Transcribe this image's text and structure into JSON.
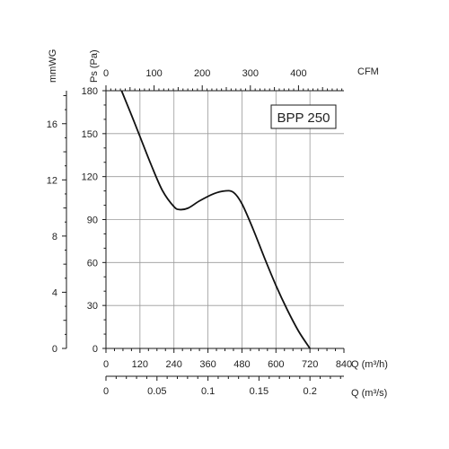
{
  "chart_data": {
    "type": "line",
    "model_label": "BPP 250",
    "series": [
      {
        "x": [
          55,
          90,
          120,
          160,
          200,
          240,
          260,
          290,
          330,
          380,
          420,
          450,
          480,
          520,
          560,
          600,
          640,
          680,
          720
        ],
        "y": [
          180,
          163,
          148,
          128,
          110,
          99,
          97,
          98,
          103,
          108,
          110,
          109,
          101,
          83,
          63,
          44,
          27,
          12,
          0
        ]
      }
    ],
    "axes": {
      "q_m3h": {
        "label": "Q (m³/h)",
        "range": [
          0,
          840
        ],
        "ticks": [
          "0",
          "120",
          "240",
          "360",
          "480",
          "600",
          "720",
          "840"
        ]
      },
      "cfm": {
        "label": "CFM",
        "range": [
          0,
          494.4
        ],
        "ticks": [
          "0",
          "100",
          "200",
          "300",
          "400"
        ]
      },
      "q_m3s": {
        "label": "Q (m³/s)",
        "range": [
          0,
          0.2333
        ],
        "ticks": [
          "0",
          "0.05",
          "0.1",
          "0.15",
          "0.2"
        ]
      },
      "ps": {
        "label": "Ps (Pa)",
        "range": [
          0,
          180
        ],
        "ticks": [
          "0",
          "30",
          "60",
          "90",
          "120",
          "150",
          "180"
        ]
      },
      "mmwg": {
        "label": "mmWG",
        "range": [
          0,
          18.35
        ],
        "ticks": [
          "0",
          "4",
          "8",
          "12",
          "16"
        ]
      }
    },
    "grid": true
  }
}
